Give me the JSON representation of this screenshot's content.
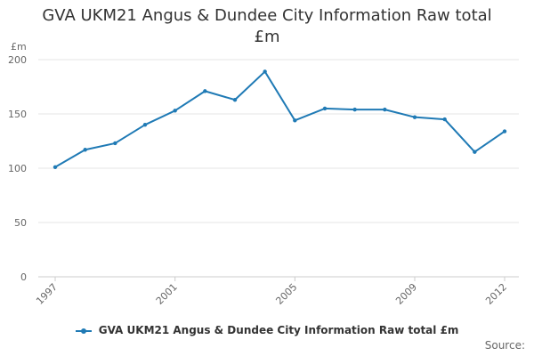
{
  "chart_data": {
    "type": "line",
    "title_lines": [
      "GVA UKM21 Angus & Dundee City Information Raw total",
      "£m"
    ],
    "ylabel": "£m",
    "xlabel": "",
    "ylim": [
      0,
      200
    ],
    "yticks": [
      0,
      50,
      100,
      150,
      200
    ],
    "xlim": [
      1997,
      2012
    ],
    "xtick_labels": [
      "1997",
      "2001",
      "2005",
      "2009",
      "2012"
    ],
    "grid": true,
    "legend_position": "bottom",
    "color": "#1f7ab5",
    "series": [
      {
        "name": "GVA UKM21 Angus & Dundee City Information Raw total £m",
        "x": [
          1997,
          1998,
          1999,
          2000,
          2001,
          2002,
          2003,
          2004,
          2005,
          2006,
          2007,
          2008,
          2009,
          2010,
          2011,
          2012
        ],
        "y": [
          101,
          117,
          123,
          140,
          153,
          171,
          163,
          189,
          144,
          155,
          154,
          154,
          147,
          145,
          115,
          134
        ]
      }
    ]
  },
  "footer": {
    "source_label": "Source:"
  }
}
